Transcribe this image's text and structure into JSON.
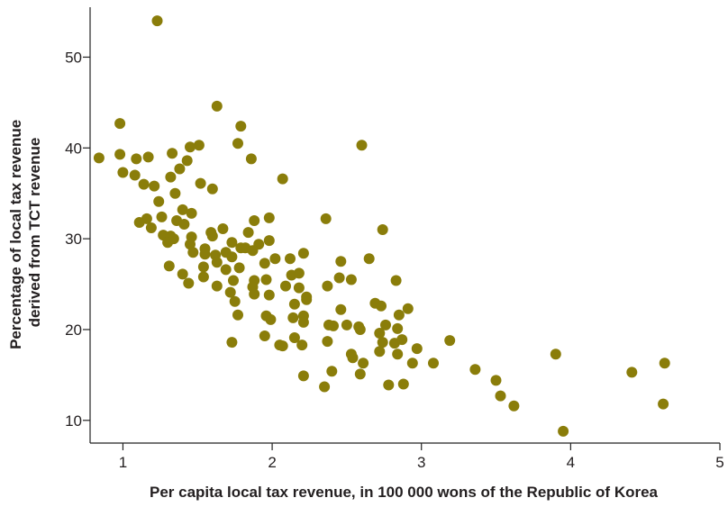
{
  "chart_data": {
    "type": "scatter",
    "xlabel": "Per capita local tax revenue, in 100 000 wons of the Republic of Korea",
    "ylabel_lines": [
      "Percentage of local tax revenue",
      "derived from TCT revenue"
    ],
    "xlim": [
      0.78,
      5.0
    ],
    "ylim": [
      7.5,
      55.5
    ],
    "x_ticks": [
      1,
      2,
      3,
      4,
      5
    ],
    "y_ticks": [
      10,
      20,
      30,
      40,
      50
    ],
    "grid": false,
    "point_color": "#8a7d0a",
    "points": [
      [
        1.23,
        54.0
      ],
      [
        1.63,
        44.6
      ],
      [
        0.98,
        42.7
      ],
      [
        1.79,
        42.4
      ],
      [
        1.77,
        40.5
      ],
      [
        1.51,
        40.3
      ],
      [
        1.45,
        40.1
      ],
      [
        2.6,
        40.3
      ],
      [
        0.84,
        38.9
      ],
      [
        0.98,
        39.3
      ],
      [
        1.09,
        38.8
      ],
      [
        1.17,
        39.0
      ],
      [
        1.33,
        39.4
      ],
      [
        1.43,
        38.6
      ],
      [
        1.86,
        38.8
      ],
      [
        1.38,
        37.7
      ],
      [
        1.0,
        37.3
      ],
      [
        1.08,
        37.0
      ],
      [
        1.32,
        36.8
      ],
      [
        1.14,
        36.0
      ],
      [
        1.52,
        36.1
      ],
      [
        2.07,
        36.6
      ],
      [
        1.21,
        35.8
      ],
      [
        1.6,
        35.5
      ],
      [
        1.35,
        35.0
      ],
      [
        1.24,
        34.1
      ],
      [
        1.4,
        33.2
      ],
      [
        1.46,
        32.8
      ],
      [
        1.26,
        32.4
      ],
      [
        1.16,
        32.2
      ],
      [
        1.11,
        31.8
      ],
      [
        1.36,
        32.0
      ],
      [
        1.88,
        32.0
      ],
      [
        1.98,
        32.3
      ],
      [
        2.36,
        32.2
      ],
      [
        1.19,
        31.2
      ],
      [
        1.41,
        31.6
      ],
      [
        1.59,
        30.7
      ],
      [
        1.67,
        31.1
      ],
      [
        1.84,
        30.7
      ],
      [
        2.74,
        31.0
      ],
      [
        1.27,
        30.4
      ],
      [
        1.32,
        30.3
      ],
      [
        1.34,
        30.0
      ],
      [
        1.46,
        30.2
      ],
      [
        1.6,
        30.3
      ],
      [
        1.3,
        29.6
      ],
      [
        1.45,
        29.4
      ],
      [
        1.55,
        28.9
      ],
      [
        1.73,
        29.6
      ],
      [
        1.82,
        29.0
      ],
      [
        1.91,
        29.4
      ],
      [
        1.98,
        29.8
      ],
      [
        1.47,
        28.5
      ],
      [
        1.55,
        28.3
      ],
      [
        1.62,
        28.2
      ],
      [
        1.69,
        28.5
      ],
      [
        1.79,
        29.0
      ],
      [
        1.87,
        28.7
      ],
      [
        2.02,
        27.8
      ],
      [
        2.21,
        28.4
      ],
      [
        1.63,
        27.4
      ],
      [
        1.73,
        28.0
      ],
      [
        1.95,
        27.3
      ],
      [
        2.12,
        27.8
      ],
      [
        2.46,
        27.5
      ],
      [
        2.65,
        27.8
      ],
      [
        1.31,
        27.0
      ],
      [
        1.54,
        26.9
      ],
      [
        1.4,
        26.1
      ],
      [
        1.54,
        25.8
      ],
      [
        1.69,
        26.6
      ],
      [
        1.78,
        26.8
      ],
      [
        1.88,
        25.4
      ],
      [
        2.13,
        26.0
      ],
      [
        2.18,
        26.2
      ],
      [
        1.44,
        25.1
      ],
      [
        1.74,
        25.4
      ],
      [
        1.96,
        25.5
      ],
      [
        2.45,
        25.7
      ],
      [
        2.53,
        25.5
      ],
      [
        2.83,
        25.4
      ],
      [
        1.63,
        24.8
      ],
      [
        1.87,
        24.7
      ],
      [
        2.09,
        24.8
      ],
      [
        2.18,
        24.6
      ],
      [
        2.37,
        24.8
      ],
      [
        1.72,
        24.1
      ],
      [
        1.88,
        23.9
      ],
      [
        1.98,
        23.8
      ],
      [
        2.23,
        23.6
      ],
      [
        2.69,
        22.9
      ],
      [
        1.75,
        23.1
      ],
      [
        2.15,
        22.8
      ],
      [
        2.23,
        23.3
      ],
      [
        2.46,
        22.2
      ],
      [
        2.73,
        22.6
      ],
      [
        2.91,
        22.3
      ],
      [
        1.77,
        21.6
      ],
      [
        1.96,
        21.5
      ],
      [
        2.14,
        21.3
      ],
      [
        2.21,
        21.5
      ],
      [
        2.85,
        21.6
      ],
      [
        1.99,
        21.1
      ],
      [
        2.21,
        20.8
      ],
      [
        2.38,
        20.5
      ],
      [
        2.41,
        20.4
      ],
      [
        2.5,
        20.5
      ],
      [
        2.58,
        20.3
      ],
      [
        2.84,
        20.1
      ],
      [
        2.76,
        20.5
      ],
      [
        1.95,
        19.3
      ],
      [
        2.15,
        19.1
      ],
      [
        2.37,
        18.7
      ],
      [
        2.59,
        20.0
      ],
      [
        2.72,
        19.6
      ],
      [
        2.74,
        18.6
      ],
      [
        2.82,
        18.5
      ],
      [
        2.87,
        18.9
      ],
      [
        3.19,
        18.8
      ],
      [
        1.73,
        18.6
      ],
      [
        2.05,
        18.3
      ],
      [
        2.07,
        18.2
      ],
      [
        2.2,
        18.3
      ],
      [
        2.72,
        17.6
      ],
      [
        2.97,
        17.9
      ],
      [
        2.53,
        17.3
      ],
      [
        2.54,
        16.9
      ],
      [
        2.84,
        17.3
      ],
      [
        3.9,
        17.3
      ],
      [
        2.94,
        16.3
      ],
      [
        3.08,
        16.3
      ],
      [
        2.61,
        16.3
      ],
      [
        3.36,
        15.6
      ],
      [
        4.41,
        15.3
      ],
      [
        4.63,
        16.3
      ],
      [
        2.4,
        15.4
      ],
      [
        2.59,
        15.1
      ],
      [
        2.21,
        14.9
      ],
      [
        3.5,
        14.4
      ],
      [
        2.35,
        13.7
      ],
      [
        2.78,
        13.9
      ],
      [
        2.88,
        14.0
      ],
      [
        3.53,
        12.7
      ],
      [
        3.62,
        11.6
      ],
      [
        4.62,
        11.8
      ],
      [
        3.95,
        8.8
      ]
    ]
  }
}
